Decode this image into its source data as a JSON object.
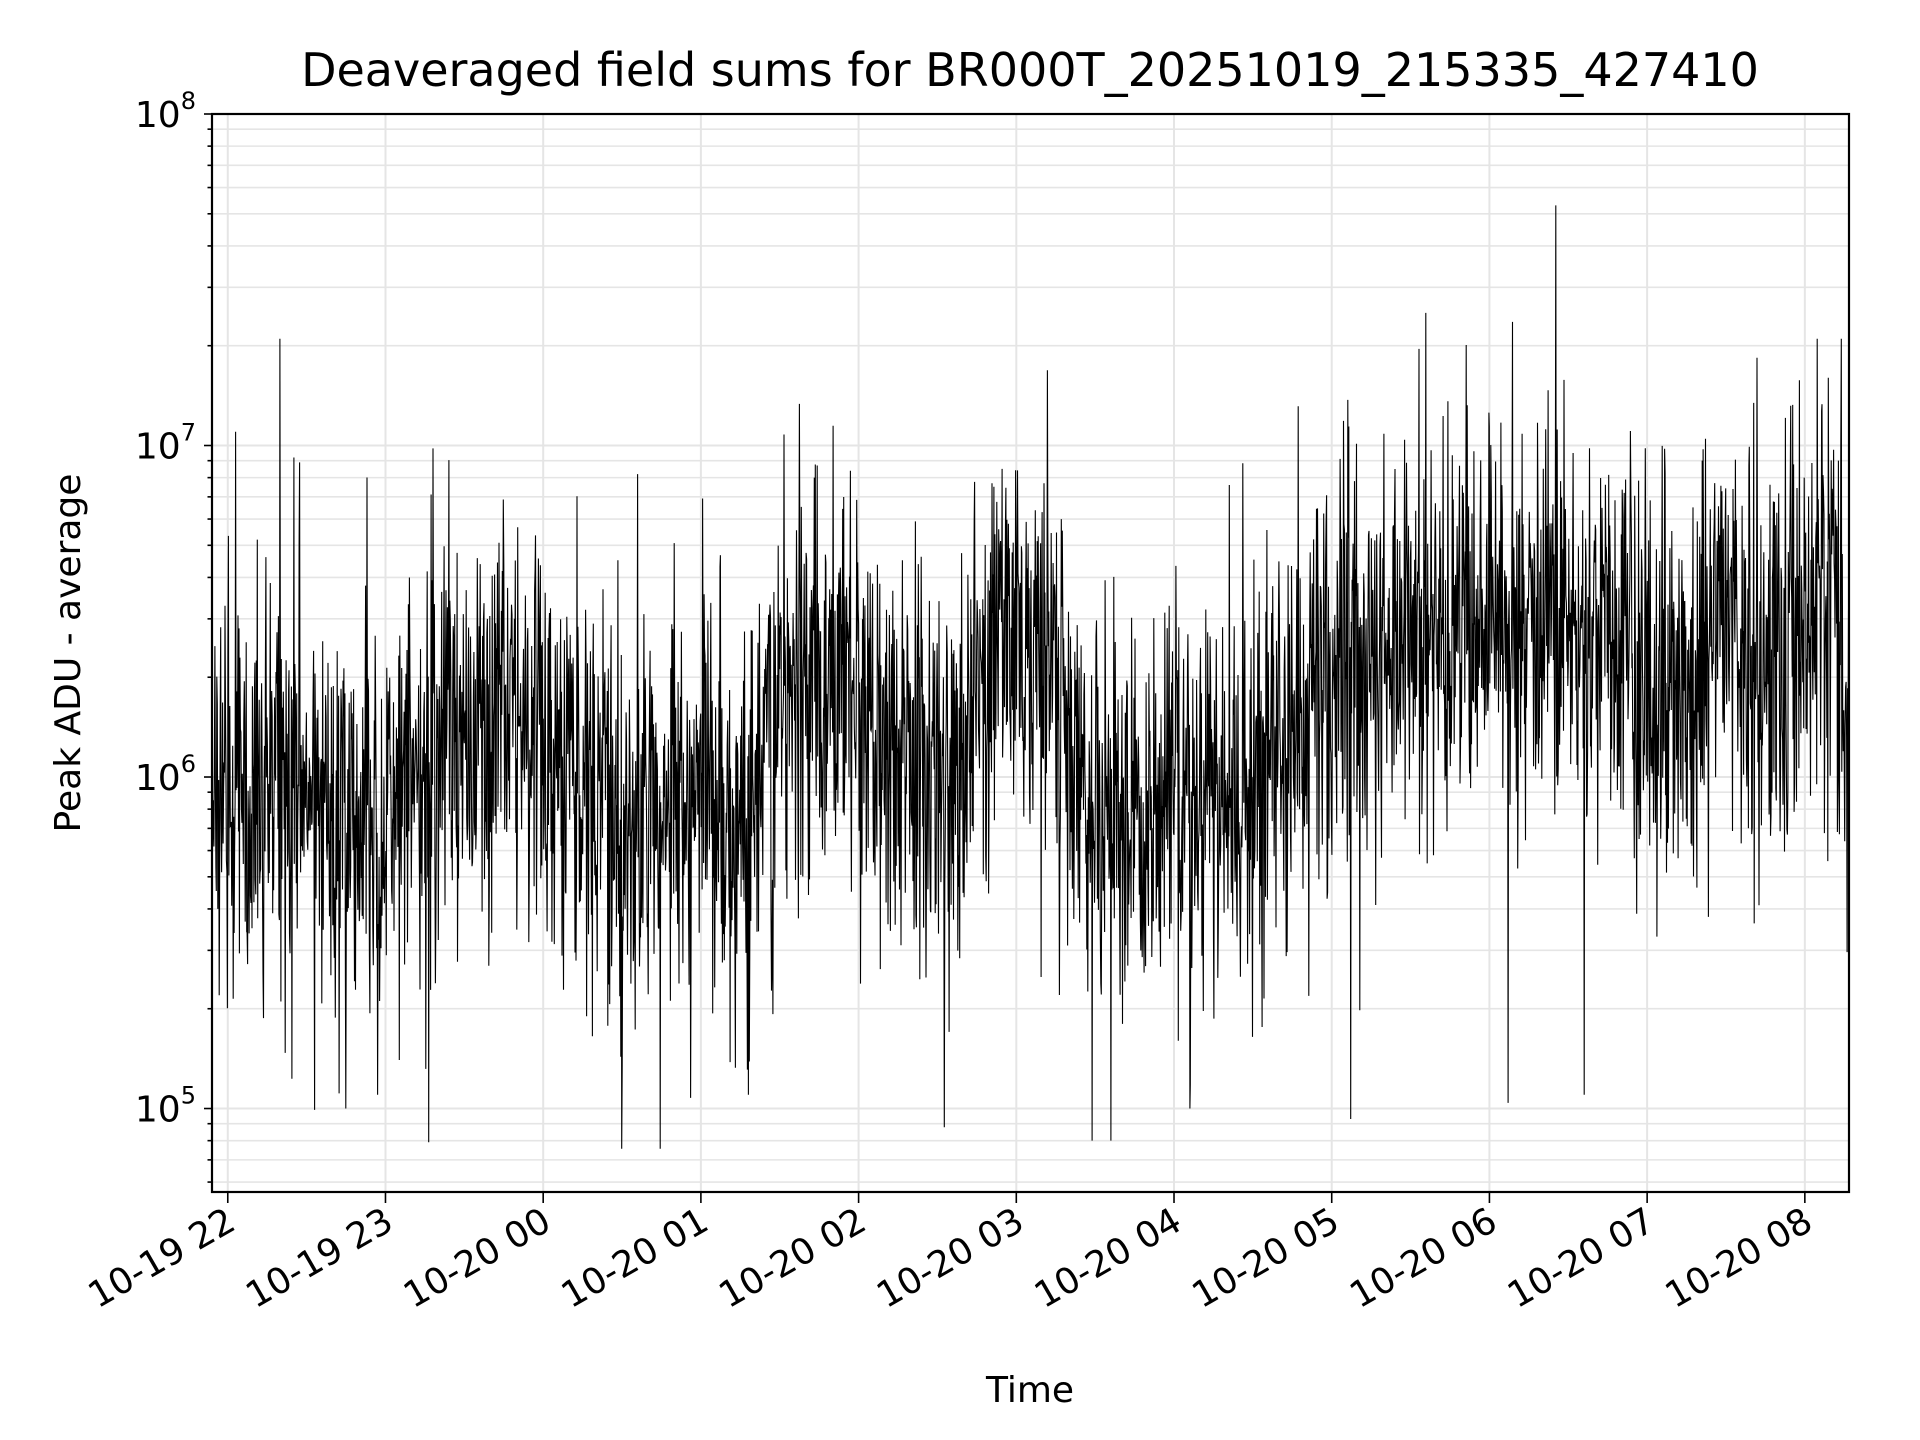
{
  "chart_data": {
    "type": "line",
    "title": "Deaveraged field sums for BR000T_20251019_215335_427410",
    "xlabel": "Time",
    "ylabel": "Peak ADU - average",
    "yscale": "log",
    "ylim": [
      56000,
      100000000
    ],
    "xlim_hours": [
      -0.1,
      10.28
    ],
    "x_ticks": [
      "10-19 22",
      "10-19 23",
      "10-20 00",
      "10-20 01",
      "10-20 02",
      "10-20 03",
      "10-20 04",
      "10-20 05",
      "10-20 06",
      "10-20 07",
      "10-20 08"
    ],
    "y_ticks": [
      {
        "base": "10",
        "exp": "5",
        "value": 100000
      },
      {
        "base": "10",
        "exp": "6",
        "value": 1000000
      },
      {
        "base": "10",
        "exp": "7",
        "value": 10000000
      },
      {
        "base": "10",
        "exp": "8",
        "value": 100000000
      }
    ],
    "grid": true,
    "line_color": "#000000",
    "grid_color": "#e5e5e5",
    "series_profile": [
      {
        "hour": -0.1,
        "median": 800000
      },
      {
        "hour": 0.0,
        "median": 900000
      },
      {
        "hour": 0.3,
        "median": 1000000
      },
      {
        "hour": 0.7,
        "median": 700000
      },
      {
        "hour": 1.0,
        "median": 700000
      },
      {
        "hour": 1.4,
        "median": 1400000
      },
      {
        "hour": 1.8,
        "median": 1400000
      },
      {
        "hour": 2.2,
        "median": 1000000
      },
      {
        "hour": 2.6,
        "median": 800000
      },
      {
        "hour": 3.0,
        "median": 900000
      },
      {
        "hour": 3.3,
        "median": 700000
      },
      {
        "hour": 3.6,
        "median": 2000000
      },
      {
        "hour": 4.0,
        "median": 1800000
      },
      {
        "hour": 4.5,
        "median": 900000
      },
      {
        "hour": 4.9,
        "median": 2600000
      },
      {
        "hour": 5.2,
        "median": 2600000
      },
      {
        "hour": 5.4,
        "median": 900000
      },
      {
        "hour": 5.8,
        "median": 700000
      },
      {
        "hour": 6.0,
        "median": 1000000
      },
      {
        "hour": 6.4,
        "median": 800000
      },
      {
        "hour": 6.9,
        "median": 2200000
      },
      {
        "hour": 7.4,
        "median": 2800000
      },
      {
        "hour": 7.8,
        "median": 2600000
      },
      {
        "hour": 8.0,
        "median": 3000000
      },
      {
        "hour": 8.5,
        "median": 2800000
      },
      {
        "hour": 9.0,
        "median": 1800000
      },
      {
        "hour": 9.5,
        "median": 2800000
      },
      {
        "hour": 10.0,
        "median": 2600000
      },
      {
        "hour": 10.15,
        "median": 3500000
      },
      {
        "hour": 10.28,
        "median": 1200000
      }
    ],
    "annotated_peaks": [
      {
        "hour": 0.05,
        "value": 11000000
      },
      {
        "hour": 0.33,
        "value": 21000000
      },
      {
        "hour": 0.42,
        "value": 9200000
      },
      {
        "hour": 1.3,
        "value": 9800000
      },
      {
        "hour": 2.6,
        "value": 8200000
      },
      {
        "hour": 6.35,
        "value": 7600000
      },
      {
        "hour": 8.42,
        "value": 53000000
      },
      {
        "hour": 10.08,
        "value": 21000000
      },
      {
        "hour": 10.23,
        "value": 21000000
      },
      {
        "hour": 10.15,
        "value": 16000000
      }
    ],
    "annotated_troughs": [
      {
        "hour": 0.05,
        "value": 190000
      },
      {
        "hour": 0.75,
        "value": 100000
      },
      {
        "hour": 0.95,
        "value": 110000
      },
      {
        "hour": 3.3,
        "value": 110000
      },
      {
        "hour": 5.48,
        "value": 80000
      },
      {
        "hour": 5.6,
        "value": 80000
      },
      {
        "hour": 6.1,
        "value": 100000
      },
      {
        "hour": 7.12,
        "value": 93000
      },
      {
        "hour": 8.12,
        "value": 104000
      },
      {
        "hour": 8.6,
        "value": 110000
      }
    ]
  }
}
